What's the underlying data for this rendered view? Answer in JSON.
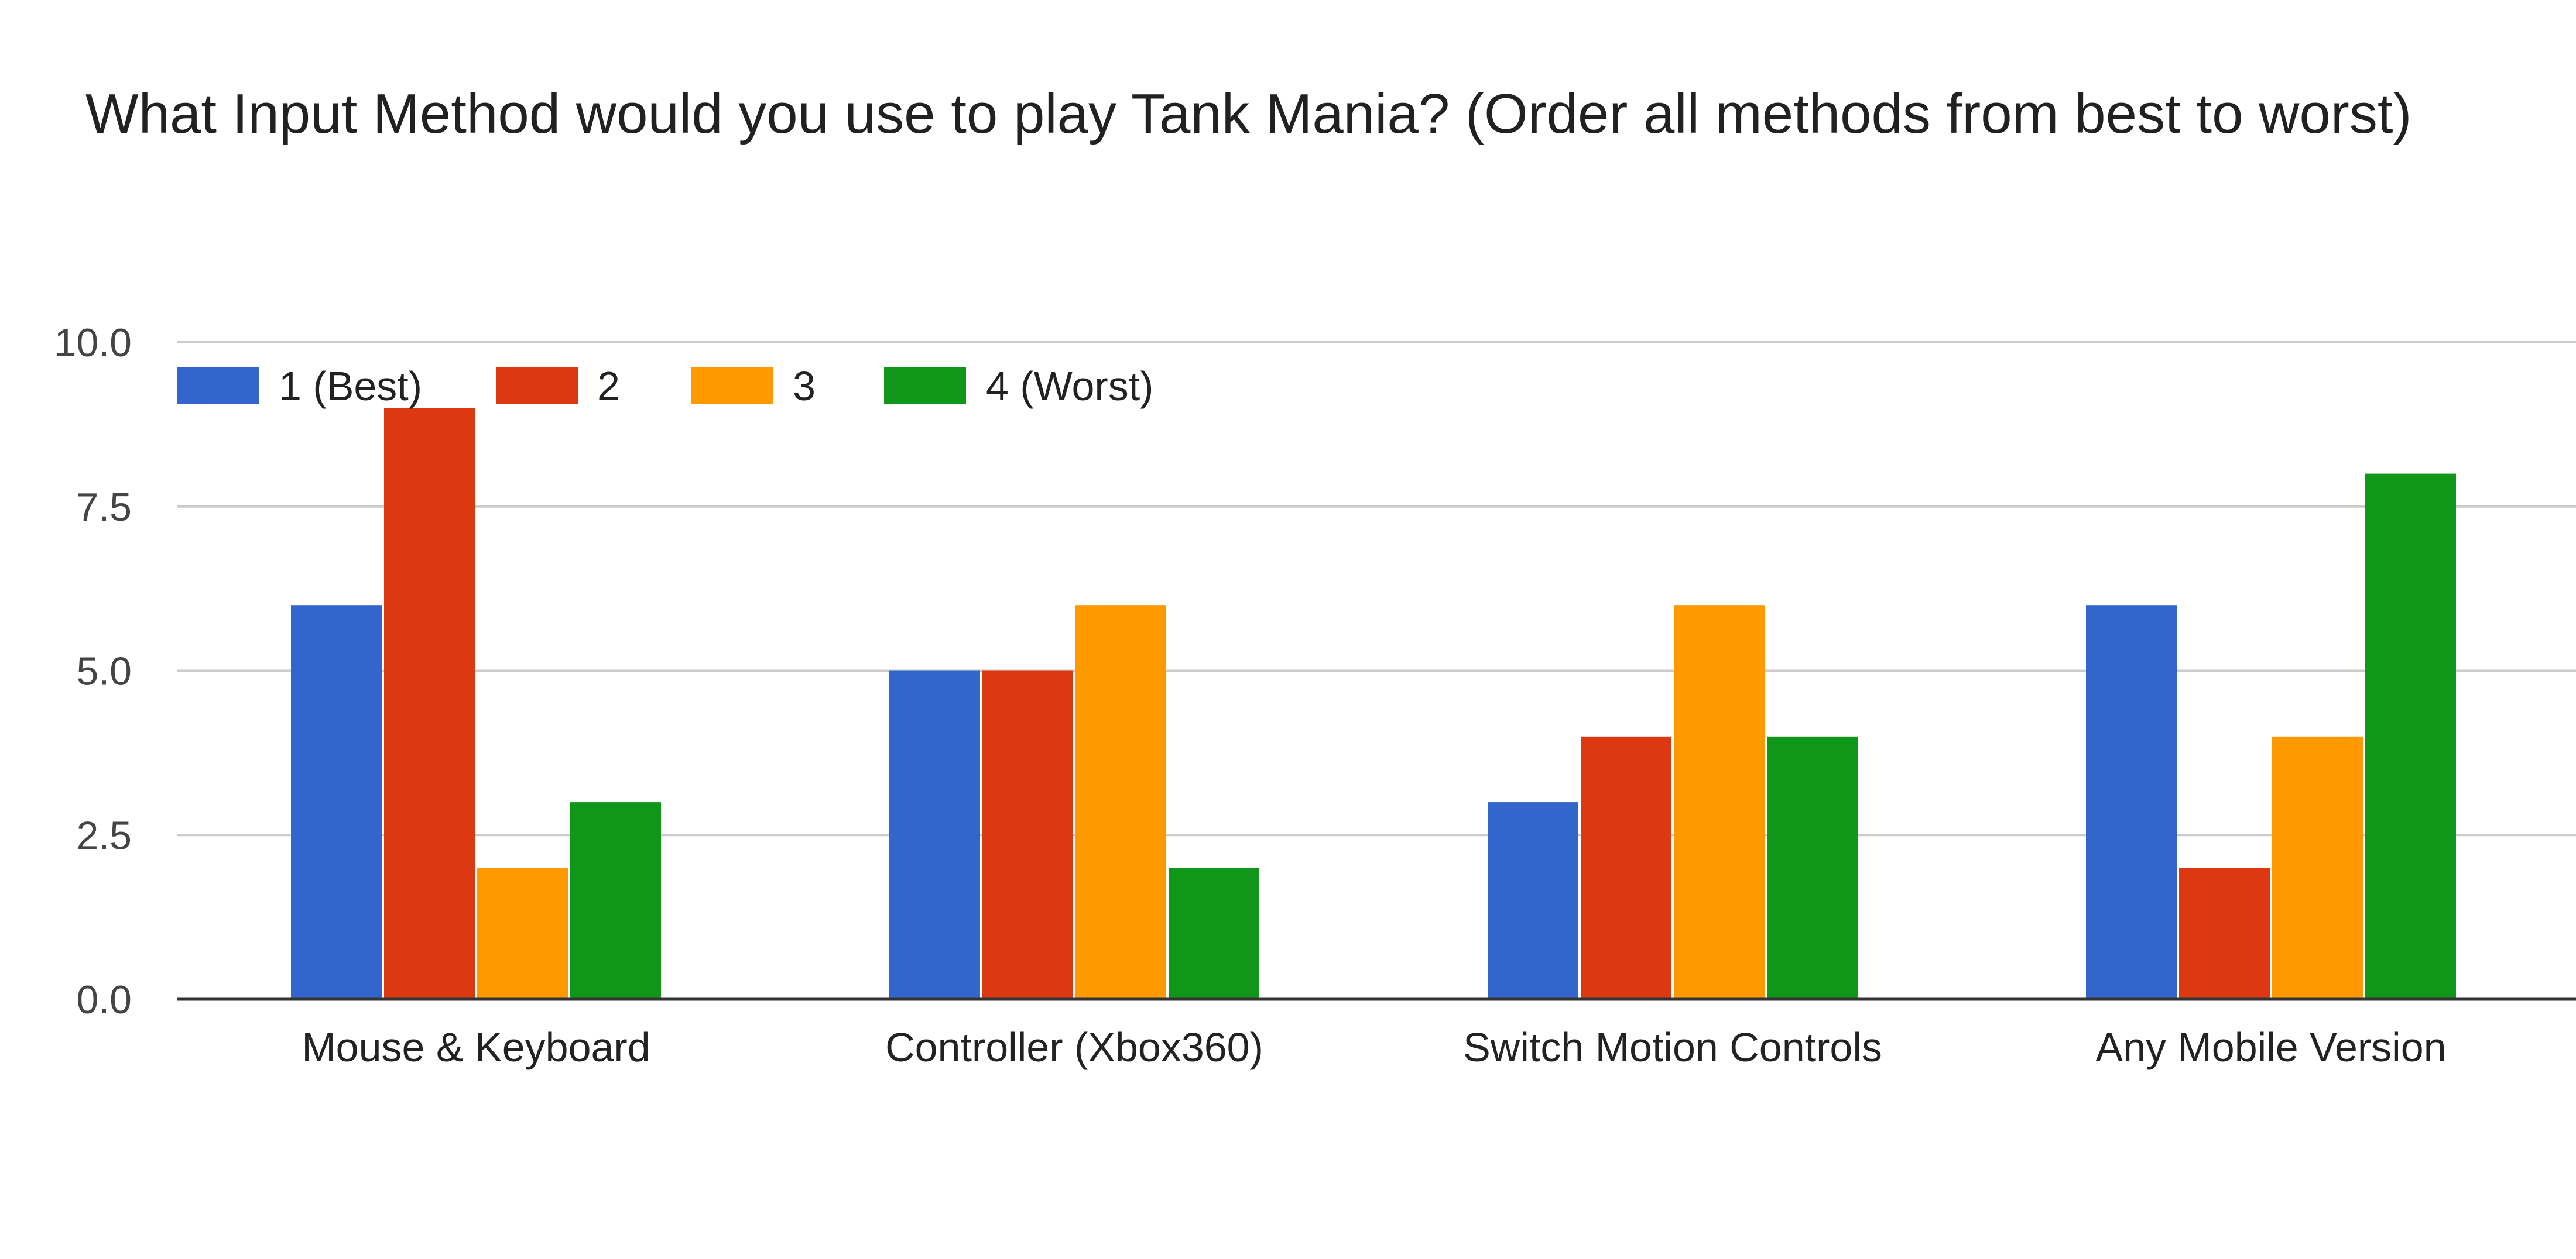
{
  "chart_data": {
    "type": "bar",
    "title": "What Input Method would you use to play Tank Mania? (Order all methods from best to worst)",
    "categories": [
      "Mouse & Keyboard",
      "Controller (Xbox360)",
      "Switch Motion Controls",
      "Any Mobile Version"
    ],
    "series": [
      {
        "name": "1 (Best)",
        "color": "#3366cc",
        "values": [
          6,
          5,
          3,
          6
        ]
      },
      {
        "name": "2",
        "color": "#dc3912",
        "values": [
          9,
          5,
          4,
          2
        ]
      },
      {
        "name": "3",
        "color": "#ff9900",
        "values": [
          2,
          6,
          6,
          4
        ]
      },
      {
        "name": "4 (Worst)",
        "color": "#109618",
        "values": [
          3,
          2,
          4,
          8
        ]
      }
    ],
    "ylim": [
      0,
      10
    ],
    "yticks": [
      "0.0",
      "2.5",
      "5.0",
      "7.5",
      "10.0"
    ],
    "ytick_values": [
      0,
      2.5,
      5,
      7.5,
      10
    ],
    "grid": true,
    "legend_position": "top-left",
    "xlabel": "",
    "ylabel": ""
  }
}
